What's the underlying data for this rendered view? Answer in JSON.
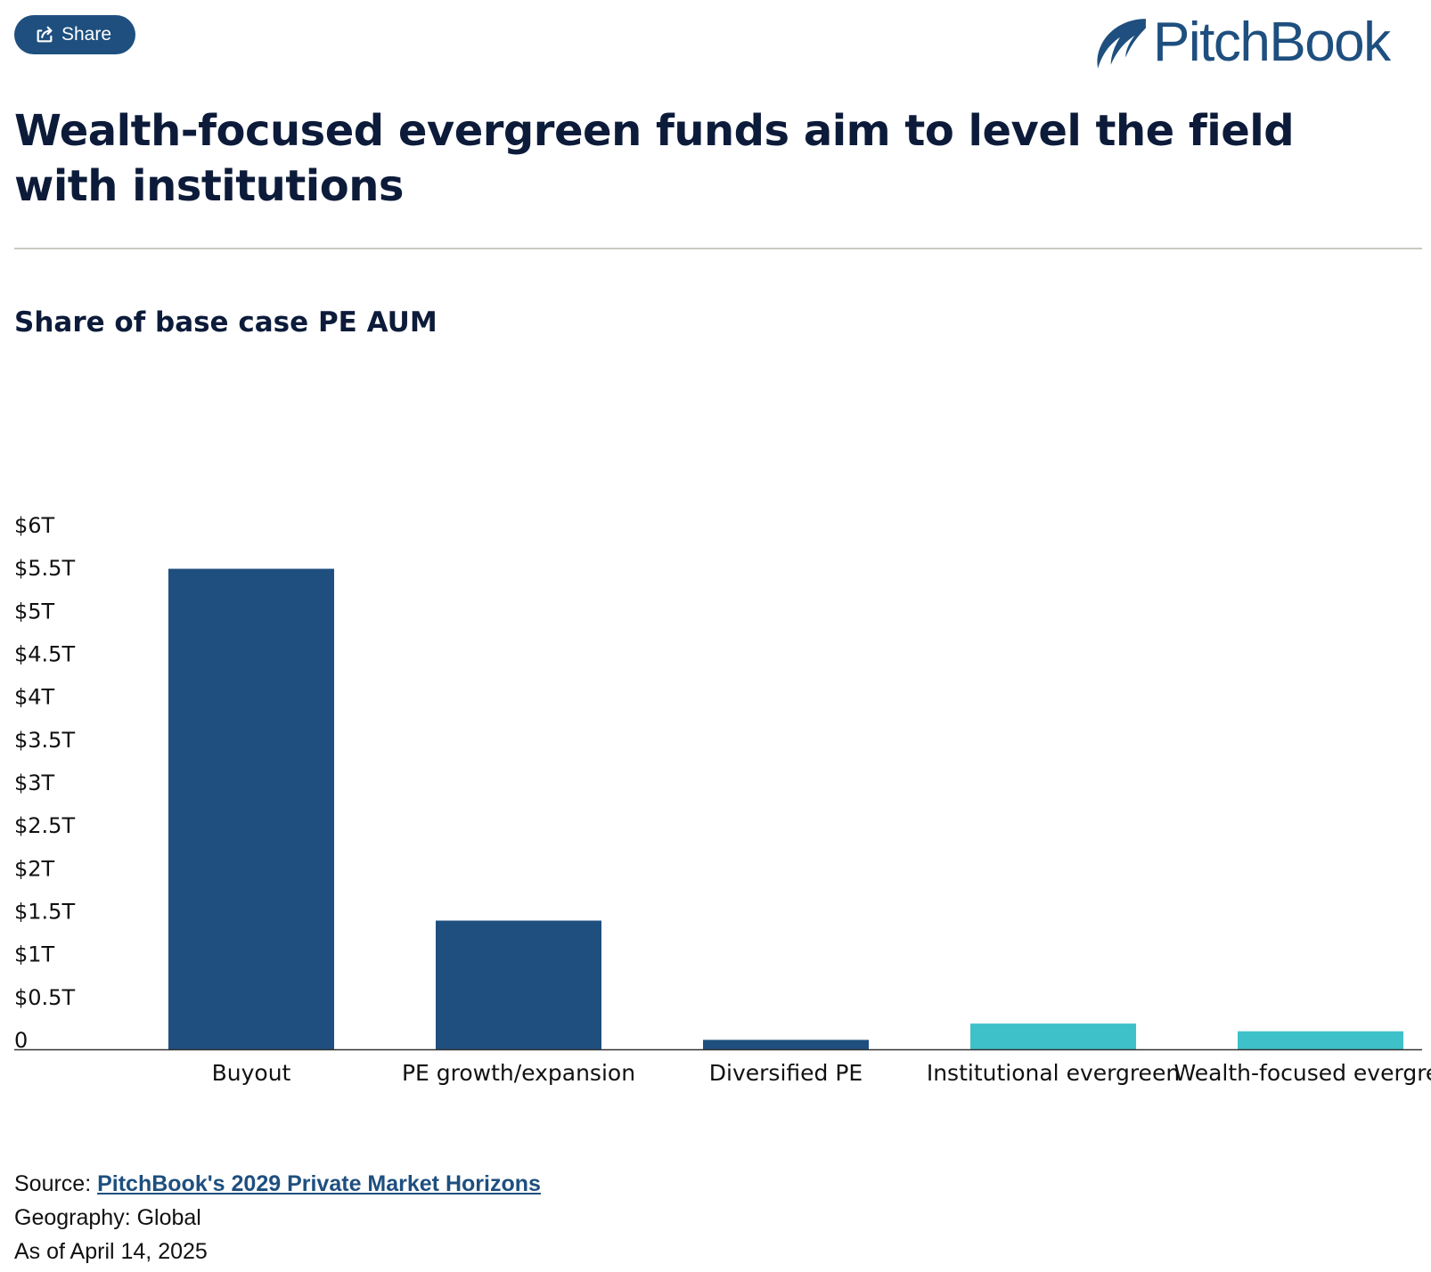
{
  "share_button": {
    "label": "Share",
    "icon": "share-icon"
  },
  "logo": {
    "text": "PitchBook",
    "icon": "pitchbook-sail-icon",
    "color": "#1e4f7f"
  },
  "title": "Wealth-focused evergreen funds aim to level the field with institutions",
  "chart_data": {
    "type": "bar",
    "title": "Share of base case PE AUM",
    "xlabel": "",
    "ylabel": "",
    "categories": [
      "Buyout",
      "PE growth/expansion",
      "Diversified PE",
      "Institutional evergreen",
      "Wealth-focused evergreen"
    ],
    "values": [
      5.6,
      1.5,
      0.11,
      0.3,
      0.21
    ],
    "bar_colors": [
      "#1e4f7f",
      "#1e4f7f",
      "#1e4f7f",
      "#3fc1c9",
      "#3fc1c9"
    ],
    "ylim": [
      0,
      6
    ],
    "yticks": [
      0,
      0.5,
      1,
      1.5,
      2,
      2.5,
      3,
      3.5,
      4,
      4.5,
      5,
      5.5,
      6
    ],
    "ytick_labels": [
      "0",
      "$0.5T",
      "$1T",
      "$1.5T",
      "$2T",
      "$2.5T",
      "$3T",
      "$3.5T",
      "$4T",
      "$4.5T",
      "$5T",
      "$5.5T",
      "$6T"
    ],
    "grid": false,
    "legend": "none"
  },
  "footer": {
    "source_label": "Source: ",
    "source_link": "PitchBook's 2029 Private Market Horizons",
    "geography": "Geography: Global",
    "as_of": "As of April 14, 2025"
  }
}
